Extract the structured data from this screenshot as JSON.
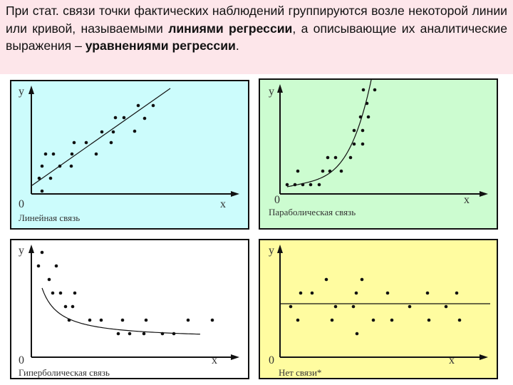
{
  "intro": {
    "parts": [
      {
        "text": "При стат. связи точки фактических наблюдений группируются возле некоторой линии или кривой, называемыми ",
        "bold": false
      },
      {
        "text": "линиями регрессии",
        "bold": true
      },
      {
        "text": ", а описывающие их аналитические выражения – ",
        "bold": false
      },
      {
        "text": "уравнениями регрессии",
        "bold": true
      },
      {
        "text": ".",
        "bold": false
      }
    ]
  },
  "colors": {
    "intro_bg": "#fde6ea",
    "linear_bg": "#ccfcfc",
    "parabolic_bg": "#ccfcd0",
    "hyperbolic_bg": "#ffffff",
    "none_bg": "#fffca0"
  },
  "chart_data": [
    {
      "type": "scatter",
      "title": "Линейная связь",
      "xlabel": "x",
      "ylabel": "y",
      "origin_label": "0",
      "trend": "linear",
      "points": [
        [
          11,
          22
        ],
        [
          15,
          39
        ],
        [
          20,
          56
        ],
        [
          31,
          56
        ],
        [
          27,
          22
        ],
        [
          15,
          4
        ],
        [
          40,
          39
        ],
        [
          57,
          56
        ],
        [
          56,
          39
        ],
        [
          60,
          72
        ],
        [
          77,
          72
        ],
        [
          91,
          56
        ],
        [
          99,
          87
        ],
        [
          115,
          87
        ],
        [
          112,
          72
        ],
        [
          118,
          107
        ],
        [
          130,
          107
        ],
        [
          145,
          88
        ],
        [
          150,
          124
        ],
        [
          159,
          106
        ],
        [
          171,
          124
        ]
      ],
      "line": [
        [
          1,
          12
        ],
        [
          195,
          148
        ]
      ]
    },
    {
      "type": "scatter",
      "title": "Параболическая связь",
      "xlabel": "x",
      "ylabel": "y",
      "origin_label": "0",
      "trend": "parabolic",
      "points": [
        [
          10,
          13
        ],
        [
          21,
          13
        ],
        [
          32,
          13
        ],
        [
          43,
          13
        ],
        [
          55,
          13
        ],
        [
          25,
          32
        ],
        [
          60,
          32
        ],
        [
          70,
          32
        ],
        [
          86,
          32
        ],
        [
          67,
          51
        ],
        [
          78,
          51
        ],
        [
          99,
          51
        ],
        [
          104,
          70
        ],
        [
          116,
          70
        ],
        [
          104,
          89
        ],
        [
          116,
          89
        ],
        [
          113,
          108
        ],
        [
          124,
          108
        ],
        [
          122,
          127
        ],
        [
          117,
          146
        ],
        [
          133,
          146
        ]
      ]
    },
    {
      "type": "scatter",
      "title": "Гиперболическая связь",
      "xlabel": "x",
      "ylabel": "y",
      "origin_label": "0",
      "trend": "hyperbolic",
      "points": [
        [
          15,
          147
        ],
        [
          10,
          128
        ],
        [
          35,
          128
        ],
        [
          25,
          109
        ],
        [
          30,
          90
        ],
        [
          41,
          90
        ],
        [
          61,
          90
        ],
        [
          48,
          71
        ],
        [
          58,
          71
        ],
        [
          53,
          52
        ],
        [
          82,
          52
        ],
        [
          98,
          52
        ],
        [
          128,
          52
        ],
        [
          161,
          52
        ],
        [
          220,
          52
        ],
        [
          254,
          52
        ],
        [
          122,
          33
        ],
        [
          138,
          33
        ],
        [
          158,
          33
        ],
        [
          184,
          33
        ],
        [
          200,
          33
        ]
      ]
    },
    {
      "type": "scatter",
      "title": "Нет связи*",
      "xlabel": "x",
      "ylabel": "y",
      "origin_label": "0",
      "trend": "none",
      "points": [
        [
          15,
          71
        ],
        [
          29,
          90
        ],
        [
          45,
          90
        ],
        [
          65,
          109
        ],
        [
          25,
          52
        ],
        [
          73,
          52
        ],
        [
          78,
          71
        ],
        [
          103,
          71
        ],
        [
          108,
          33
        ],
        [
          107,
          90
        ],
        [
          115,
          109
        ],
        [
          131,
          52
        ],
        [
          157,
          52
        ],
        [
          151,
          90
        ],
        [
          182,
          71
        ],
        [
          207,
          90
        ],
        [
          233,
          71
        ],
        [
          209,
          52
        ],
        [
          248,
          90
        ],
        [
          252,
          52
        ]
      ],
      "line": [
        [
          0,
          75
        ],
        [
          295,
          75
        ]
      ]
    }
  ]
}
